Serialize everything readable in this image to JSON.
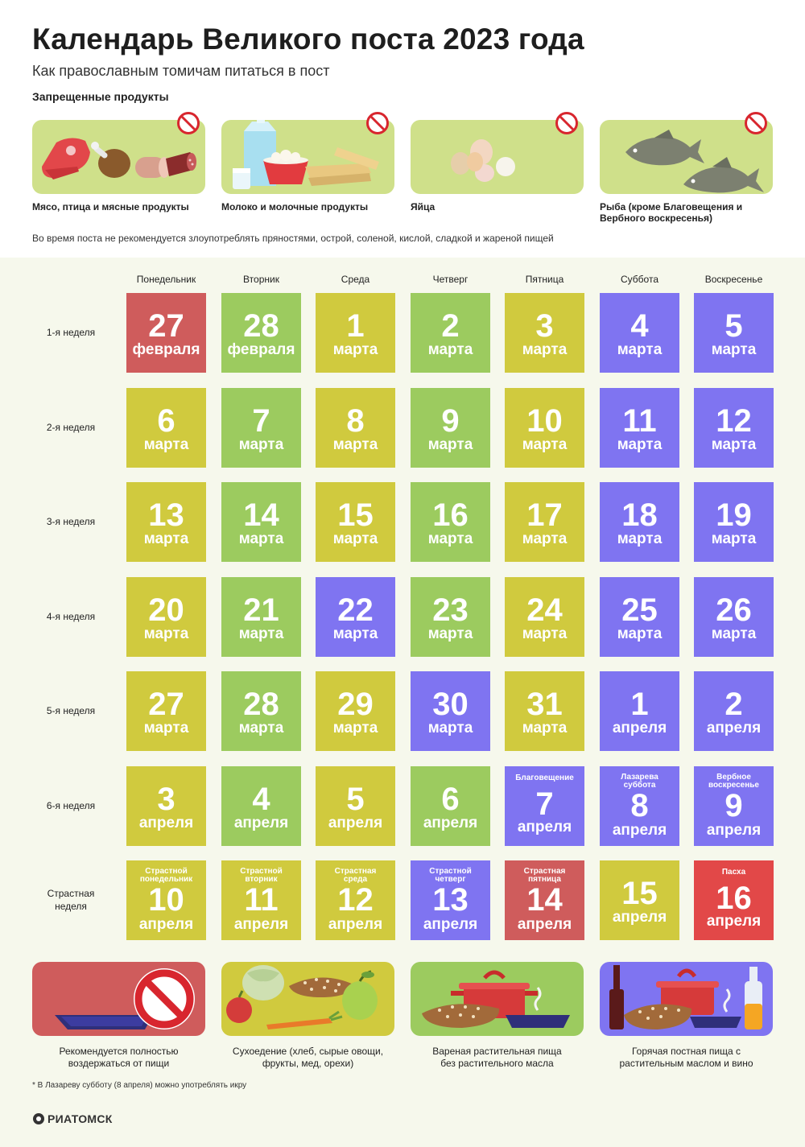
{
  "title": "Календарь Великого поста 2023 года",
  "subtitle": "Как православным томичам питаться в пост",
  "forbidden_heading": "Запрещенные продукты",
  "forbidden": [
    {
      "label": "Мясо, птица и мясные продукты",
      "icon": "meat-icon"
    },
    {
      "label": "Молоко и молочные продукты",
      "icon": "dairy-icon"
    },
    {
      "label": "Яйца",
      "icon": "eggs-icon"
    },
    {
      "label": "Рыба (кроме Благовещения и Вербного воскресенья)",
      "icon": "fish-icon"
    }
  ],
  "note_top": "Во время поста не рекомендуется злоупотреблять пряностями, острой, соленой, кислой, сладкой и жареной пищей",
  "days": [
    "Понедельник",
    "Вторник",
    "Среда",
    "Четверг",
    "Пятница",
    "Суббота",
    "Воскресенье"
  ],
  "weeks": [
    "1-я неделя",
    "2-я неделя",
    "3-я неделя",
    "4-я неделя",
    "5-я неделя",
    "6-я неделя",
    "Страстная неделя"
  ],
  "colors": {
    "abstain": "#cf5c5c",
    "dry": "#d0ca3e",
    "boiled": "#9ccb5f",
    "hot": "#7f74f1",
    "easter": "#e24848",
    "panel": "#f6f8ec",
    "forbidden_card": "#cfe08a"
  },
  "calendar": [
    [
      {
        "n": "27",
        "m": "февраля",
        "t": "abstain"
      },
      {
        "n": "28",
        "m": "февраля",
        "t": "boiled"
      },
      {
        "n": "1",
        "m": "марта",
        "t": "dry"
      },
      {
        "n": "2",
        "m": "марта",
        "t": "boiled"
      },
      {
        "n": "3",
        "m": "марта",
        "t": "dry"
      },
      {
        "n": "4",
        "m": "марта",
        "t": "hot"
      },
      {
        "n": "5",
        "m": "марта",
        "t": "hot"
      }
    ],
    [
      {
        "n": "6",
        "m": "марта",
        "t": "dry"
      },
      {
        "n": "7",
        "m": "марта",
        "t": "boiled"
      },
      {
        "n": "8",
        "m": "марта",
        "t": "dry"
      },
      {
        "n": "9",
        "m": "марта",
        "t": "boiled"
      },
      {
        "n": "10",
        "m": "марта",
        "t": "dry"
      },
      {
        "n": "11",
        "m": "марта",
        "t": "hot"
      },
      {
        "n": "12",
        "m": "марта",
        "t": "hot"
      }
    ],
    [
      {
        "n": "13",
        "m": "марта",
        "t": "dry"
      },
      {
        "n": "14",
        "m": "марта",
        "t": "boiled"
      },
      {
        "n": "15",
        "m": "марта",
        "t": "dry"
      },
      {
        "n": "16",
        "m": "марта",
        "t": "boiled"
      },
      {
        "n": "17",
        "m": "марта",
        "t": "dry"
      },
      {
        "n": "18",
        "m": "марта",
        "t": "hot"
      },
      {
        "n": "19",
        "m": "марта",
        "t": "hot"
      }
    ],
    [
      {
        "n": "20",
        "m": "марта",
        "t": "dry"
      },
      {
        "n": "21",
        "m": "марта",
        "t": "boiled"
      },
      {
        "n": "22",
        "m": "марта",
        "t": "hot"
      },
      {
        "n": "23",
        "m": "марта",
        "t": "boiled"
      },
      {
        "n": "24",
        "m": "марта",
        "t": "dry"
      },
      {
        "n": "25",
        "m": "марта",
        "t": "hot"
      },
      {
        "n": "26",
        "m": "марта",
        "t": "hot"
      }
    ],
    [
      {
        "n": "27",
        "m": "марта",
        "t": "dry"
      },
      {
        "n": "28",
        "m": "марта",
        "t": "boiled"
      },
      {
        "n": "29",
        "m": "марта",
        "t": "dry"
      },
      {
        "n": "30",
        "m": "марта",
        "t": "hot"
      },
      {
        "n": "31",
        "m": "марта",
        "t": "dry"
      },
      {
        "n": "1",
        "m": "апреля",
        "t": "hot"
      },
      {
        "n": "2",
        "m": "апреля",
        "t": "hot"
      }
    ],
    [
      {
        "n": "3",
        "m": "апреля",
        "t": "dry"
      },
      {
        "n": "4",
        "m": "апреля",
        "t": "boiled"
      },
      {
        "n": "5",
        "m": "апреля",
        "t": "dry"
      },
      {
        "n": "6",
        "m": "апреля",
        "t": "boiled"
      },
      {
        "n": "7",
        "m": "апреля",
        "t": "hot",
        "ev": [
          "Благовещение"
        ]
      },
      {
        "n": "8",
        "m": "апреля",
        "t": "hot",
        "ev": [
          "Лазарева",
          "суббота"
        ]
      },
      {
        "n": "9",
        "m": "апреля",
        "t": "hot",
        "ev": [
          "Вербное",
          "воскресенье"
        ]
      }
    ],
    [
      {
        "n": "10",
        "m": "апреля",
        "t": "dry",
        "ev": [
          "Страстной",
          "понедельник"
        ]
      },
      {
        "n": "11",
        "m": "апреля",
        "t": "dry",
        "ev": [
          "Страстной",
          "вторник"
        ]
      },
      {
        "n": "12",
        "m": "апреля",
        "t": "dry",
        "ev": [
          "Страстная",
          "среда"
        ]
      },
      {
        "n": "13",
        "m": "апреля",
        "t": "hot",
        "ev": [
          "Страстной",
          "четверг"
        ]
      },
      {
        "n": "14",
        "m": "апреля",
        "t": "abstain",
        "ev": [
          "Страстная",
          "пятница"
        ]
      },
      {
        "n": "15",
        "m": "апреля",
        "t": "dry"
      },
      {
        "n": "16",
        "m": "апреля",
        "t": "easter",
        "ev": [
          "Пасха"
        ]
      }
    ]
  ],
  "legend": [
    {
      "label": "Рекомендуется полностью воздержаться от пищи",
      "type": "abstain"
    },
    {
      "label": "Сухоедение (хлеб, сырые овощи, фрукты, мед, орехи)",
      "type": "dry"
    },
    {
      "label": "Вареная растительная пища без растительного масла",
      "type": "boiled"
    },
    {
      "label": "Горячая постная пища с растительным маслом и вино",
      "type": "hot"
    }
  ],
  "footnote": "* В Лазареву субботу (8 апреля) можно употреблять икру",
  "logo": "РИАТОМСК"
}
